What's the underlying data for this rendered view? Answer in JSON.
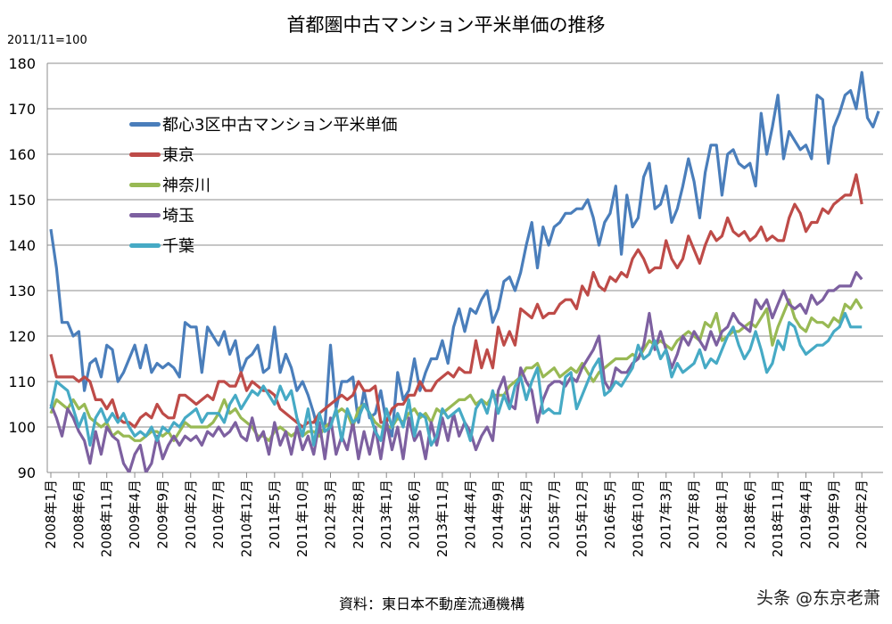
{
  "chart_data": {
    "type": "line",
    "title": "首都圏中古マンション平米単価の推移",
    "subtitle": "2011/11=100",
    "source": "資料：東日本不動産流通機構",
    "watermark": "头条 @东京老萧",
    "ylim": [
      90,
      180
    ],
    "y_ticks": [
      90,
      100,
      110,
      120,
      130,
      140,
      150,
      160,
      170,
      180
    ],
    "x_tick_labels": [
      "2008年1月",
      "2008年6月",
      "2008年11月",
      "2009年4月",
      "2009年9月",
      "2010年2月",
      "2010年7月",
      "2010年12月",
      "2011年5月",
      "2011年10月",
      "2012年3月",
      "2012年8月",
      "2013年1月",
      "2013年6月",
      "2013年11月",
      "2014年4月",
      "2014年9月",
      "2015年2月",
      "2015年7月",
      "2015年12月",
      "2016年5月",
      "2016年10月",
      "2017年3月",
      "2017年8月",
      "2018年1月",
      "2018年6月",
      "2018年11月",
      "2019年4月",
      "2019年9月",
      "2020年2月"
    ],
    "x_range": [
      "2008年1月",
      "2020年2月"
    ],
    "grid": true,
    "legend_placement": "top-left",
    "series": [
      {
        "name": "都心3区中古マンション平米単価",
        "color": "#4a7ebb",
        "values": [
          143.5,
          135,
          123,
          123,
          120,
          121,
          108,
          114,
          115,
          111,
          118,
          117,
          110,
          112,
          115,
          118,
          113,
          118,
          112,
          114,
          113,
          114,
          113,
          111,
          123,
          122,
          122,
          112,
          122,
          120,
          118,
          121,
          116,
          119,
          112,
          115,
          116,
          118,
          112,
          113,
          122,
          112,
          116,
          113,
          108,
          110,
          107,
          103,
          98,
          100,
          118,
          104,
          110,
          110,
          111,
          101,
          108,
          102,
          103,
          108,
          101,
          98,
          112,
          106,
          108,
          115,
          108,
          112,
          115,
          115,
          119,
          114,
          122,
          126,
          121,
          126,
          125,
          128,
          130,
          123,
          126,
          132,
          133,
          130,
          134,
          140,
          145,
          135,
          144,
          140,
          144,
          145,
          147,
          147,
          148,
          148,
          150,
          146,
          140,
          145,
          147,
          153,
          138,
          151,
          144,
          146,
          155,
          158,
          148,
          149,
          153,
          145,
          148,
          153,
          159,
          154,
          146,
          156,
          162,
          162,
          151,
          160,
          161,
          158,
          157,
          158,
          153,
          169,
          160,
          166,
          173,
          159,
          165,
          163,
          161,
          162,
          159,
          173,
          172,
          158,
          166,
          169,
          173,
          174,
          170,
          178,
          168,
          166,
          169.5
        ]
      },
      {
        "name": "東京",
        "color": "#be4b48",
        "values": [
          116,
          111,
          111,
          111,
          111,
          110,
          111,
          110,
          106,
          106,
          104,
          106,
          102,
          101,
          101,
          100,
          102,
          103,
          102,
          105,
          103,
          102,
          102,
          107,
          107,
          106,
          105,
          106,
          107,
          106,
          110,
          110,
          109,
          109,
          112,
          108,
          110,
          109,
          108,
          108,
          107,
          104,
          103,
          102,
          101,
          100,
          101,
          101,
          103,
          104,
          105,
          106,
          107,
          106,
          107,
          110,
          108,
          108,
          109,
          101,
          101,
          104,
          105,
          105,
          107,
          107,
          110,
          108,
          108,
          110,
          111,
          112,
          111,
          113,
          112,
          112,
          119,
          113,
          117,
          113,
          122,
          118,
          121,
          118,
          126,
          125,
          124,
          127,
          124,
          125,
          125,
          127,
          128,
          128,
          126,
          131,
          129,
          134,
          131,
          130,
          133,
          132,
          134,
          133,
          137,
          139,
          137,
          134,
          135,
          135,
          141,
          137,
          135,
          137,
          142,
          139,
          136,
          140,
          143,
          141,
          142,
          146,
          143,
          142,
          143,
          141,
          142,
          144,
          141,
          142,
          141,
          141,
          146,
          149,
          147,
          143,
          145,
          145,
          148,
          147,
          149,
          150,
          151,
          151,
          155.5,
          149
        ]
      },
      {
        "name": "神奈川",
        "color": "#98b954",
        "values": [
          103,
          106,
          105,
          104,
          106,
          104,
          105,
          102,
          101,
          100,
          101,
          98,
          99,
          98,
          98,
          97,
          97,
          98,
          99,
          99,
          98,
          99,
          97,
          99,
          101,
          100,
          100,
          100,
          100,
          101,
          103,
          106,
          103,
          104,
          102,
          101,
          100,
          98,
          98,
          97,
          99,
          100,
          99,
          98,
          99,
          98,
          99,
          99,
          98,
          100,
          101,
          103,
          104,
          103,
          100,
          104,
          105,
          103,
          101,
          100,
          100,
          100,
          102,
          101,
          103,
          104,
          102,
          103,
          101,
          104,
          103,
          104,
          105,
          106,
          106,
          107,
          105,
          106,
          105,
          107,
          107,
          107,
          109,
          110,
          111,
          113,
          113,
          114,
          111,
          112,
          113,
          111,
          112,
          113,
          112,
          114,
          112,
          110,
          112,
          113,
          114,
          115,
          115,
          115,
          116,
          115,
          117,
          119,
          118,
          119,
          118,
          117,
          119,
          120,
          121,
          120,
          119,
          123,
          122,
          125,
          119,
          120,
          121,
          121,
          122,
          123,
          122,
          124,
          126,
          118,
          122,
          125,
          128,
          124,
          122,
          121,
          124,
          123,
          123,
          122,
          124,
          123,
          127,
          126,
          128,
          126
        ]
      },
      {
        "name": "埼玉",
        "color": "#7d60a0",
        "values": [
          105,
          102,
          98,
          104,
          102,
          99,
          97,
          92,
          99,
          94,
          100,
          98,
          97,
          92,
          90,
          94,
          96,
          90,
          92,
          98,
          93,
          96,
          98,
          96,
          98,
          97,
          98,
          96,
          99,
          98,
          100,
          98,
          99,
          101,
          98,
          97,
          102,
          97,
          99,
          94,
          101,
          96,
          99,
          94,
          100,
          95,
          98,
          94,
          101,
          93,
          102,
          94,
          98,
          95,
          101,
          93,
          99,
          94,
          100,
          93,
          101,
          95,
          100,
          93,
          102,
          97,
          99,
          93,
          101,
          96,
          102,
          97,
          103,
          98,
          101,
          99,
          95,
          98,
          100,
          97,
          108,
          111,
          105,
          104,
          113,
          110,
          108,
          101,
          106,
          109,
          110,
          110,
          109,
          111,
          110,
          113,
          115,
          117,
          120,
          110,
          108,
          113,
          112,
          112,
          114,
          115,
          118,
          125,
          117,
          121,
          117,
          113,
          116,
          120,
          118,
          121,
          119,
          117,
          121,
          118,
          121,
          122,
          125,
          123,
          122,
          121,
          128,
          126,
          128,
          124,
          127,
          130,
          127,
          126,
          127,
          125,
          129,
          127,
          128,
          130,
          130,
          131,
          131,
          131,
          134,
          132.5
        ]
      },
      {
        "name": "千葉",
        "color": "#46aac5",
        "values": [
          104,
          110,
          109,
          108,
          104,
          100,
          103,
          96,
          102,
          104,
          101,
          103,
          101,
          103,
          100,
          98,
          99,
          98,
          100,
          97,
          100,
          99,
          101,
          100,
          102,
          103,
          104,
          101,
          103,
          103,
          103,
          101,
          105,
          107,
          104,
          106,
          108,
          107,
          109,
          107,
          105,
          109,
          106,
          108,
          102,
          98,
          104,
          96,
          103,
          99,
          100,
          104,
          97,
          104,
          101,
          102,
          105,
          103,
          99,
          97,
          104,
          100,
          103,
          100,
          106,
          98,
          103,
          102,
          96,
          98,
          104,
          102,
          103,
          104,
          101,
          97,
          104,
          106,
          103,
          108,
          103,
          107,
          104,
          109,
          111,
          106,
          110,
          113,
          103,
          104,
          103,
          103,
          111,
          112,
          104,
          107,
          110,
          113,
          115,
          107,
          108,
          110,
          109,
          111,
          113,
          118,
          115,
          116,
          119,
          115,
          117,
          111,
          114,
          112,
          113,
          114,
          117,
          113,
          115,
          114,
          117,
          120,
          122,
          118,
          115,
          117,
          121,
          117,
          112,
          114,
          119,
          117,
          123,
          122,
          118,
          116,
          117,
          118,
          118,
          119,
          121,
          122,
          125,
          122,
          122,
          122
        ]
      }
    ]
  }
}
